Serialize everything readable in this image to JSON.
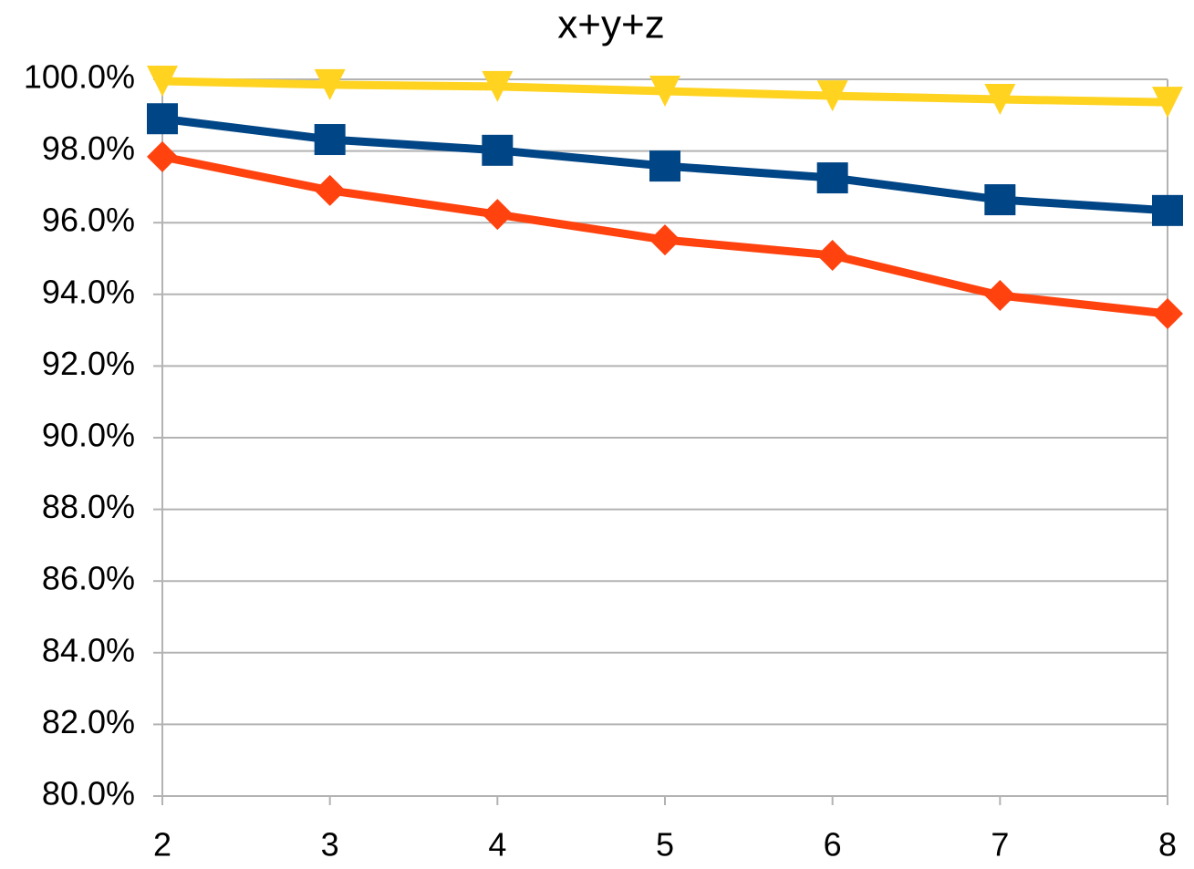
{
  "chart_data": {
    "type": "line",
    "title": "x+y+z",
    "x": [
      2,
      3,
      4,
      5,
      6,
      7,
      8
    ],
    "xlim": [
      2,
      8
    ],
    "xticks": [
      2,
      3,
      4,
      5,
      6,
      7,
      8
    ],
    "ylim": [
      80,
      100
    ],
    "yticks": [
      {
        "value": 80,
        "label": "80.0%"
      },
      {
        "value": 82,
        "label": "82.0%"
      },
      {
        "value": 84,
        "label": "84.0%"
      },
      {
        "value": 86,
        "label": "86.0%"
      },
      {
        "value": 88,
        "label": "88.0%"
      },
      {
        "value": 90,
        "label": "90.0%"
      },
      {
        "value": 92,
        "label": "92.0%"
      },
      {
        "value": 94,
        "label": "94.0%"
      },
      {
        "value": 96,
        "label": "96.0%"
      },
      {
        "value": 98,
        "label": "98.0%"
      },
      {
        "value": 100,
        "label": "100.0%"
      }
    ],
    "grid": true,
    "series": [
      {
        "color": "#004586",
        "marker": "square",
        "values": [
          98.9,
          98.32,
          98.02,
          97.58,
          97.25,
          96.64,
          96.34
        ]
      },
      {
        "color": "#ff420e",
        "marker": "diamond",
        "values": [
          97.84,
          96.9,
          96.23,
          95.52,
          95.09,
          93.97,
          93.46
        ]
      },
      {
        "color": "#ffd320",
        "marker": "triangle-down",
        "values": [
          99.95,
          99.85,
          99.8,
          99.67,
          99.54,
          99.44,
          99.36
        ]
      }
    ]
  }
}
